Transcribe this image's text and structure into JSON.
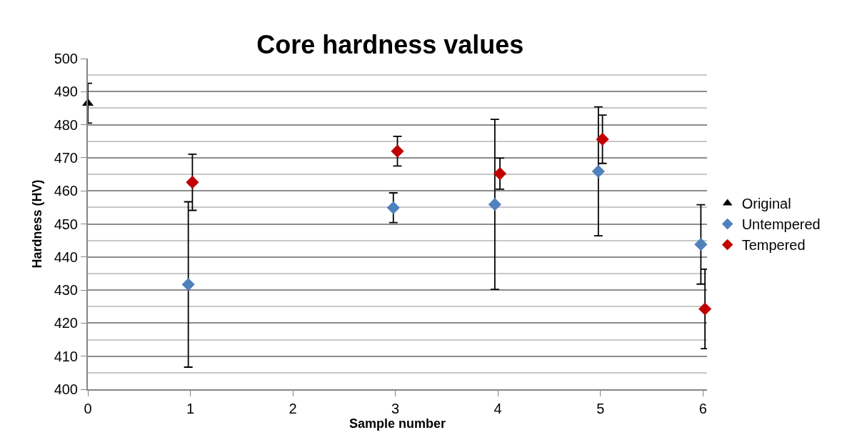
{
  "chart_data": {
    "type": "scatter",
    "title": "Core hardness values",
    "xlabel": "Sample number",
    "ylabel": "Hardness (HV)",
    "xlim": [
      0,
      6.04
    ],
    "xticks": [
      0,
      1,
      2,
      3,
      4,
      5,
      6
    ],
    "ylim": [
      400,
      500
    ],
    "yticks": [
      400,
      410,
      420,
      430,
      440,
      450,
      460,
      470,
      480,
      490,
      500
    ],
    "grid": "y",
    "legend": "right",
    "series": [
      {
        "name": "Original",
        "color": "#000000",
        "marker": "triangle",
        "x": [
          0
        ],
        "values": [
          486.5
        ],
        "errors": [
          6
        ]
      },
      {
        "name": "Untempered",
        "color": "#4f81bd",
        "marker": "diamond",
        "x": [
          0.98,
          2.98,
          3.97,
          4.98,
          5.98
        ],
        "values": [
          431.7,
          454.9,
          455.9,
          465.9,
          443.8
        ],
        "errors": [
          25,
          4.5,
          25.7,
          19.5,
          12
        ]
      },
      {
        "name": "Tempered",
        "color": "#c00000",
        "marker": "diamond",
        "x": [
          1.02,
          3.02,
          4.02,
          5.02,
          6.02
        ],
        "values": [
          462.6,
          472,
          465.2,
          475.6,
          424.3
        ],
        "errors": [
          8.5,
          4.5,
          4.7,
          7.3,
          12
        ]
      }
    ]
  }
}
